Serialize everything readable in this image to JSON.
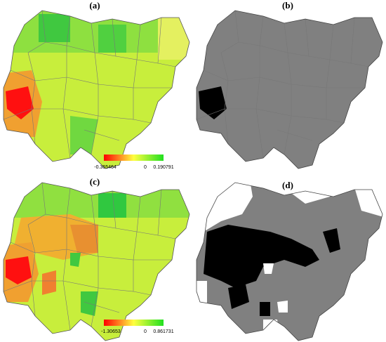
{
  "panels": [
    {
      "label": "(a)",
      "colorbar": {
        "min": -0.365464,
        "mid": 0,
        "max": 0.190791
      }
    },
    {
      "label": "(b)"
    },
    {
      "label": "(c)",
      "colorbar": {
        "min": -1.30653,
        "mid": 0,
        "max": 0.861731
      }
    },
    {
      "label": "(d)"
    }
  ]
}
